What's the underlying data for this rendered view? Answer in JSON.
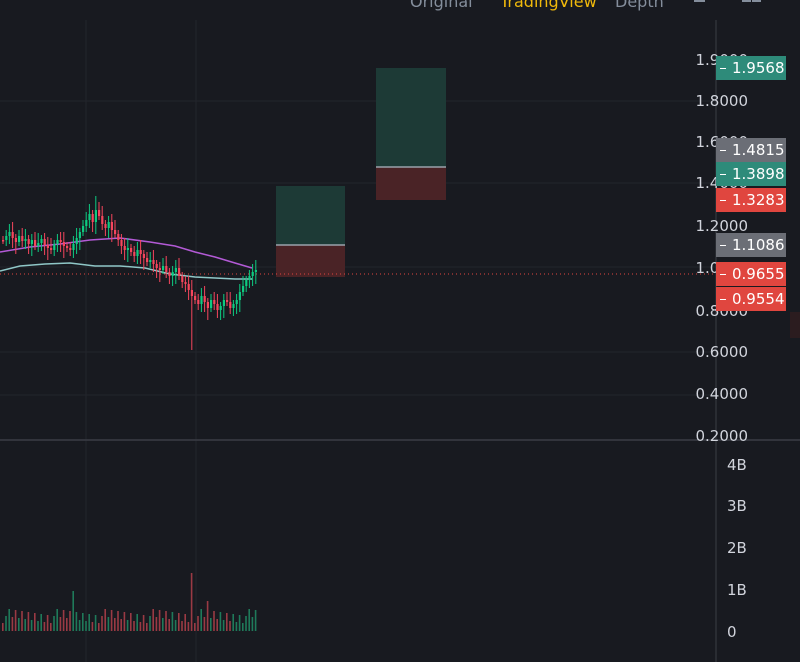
{
  "toolbar": {
    "tabs": [
      {
        "label": "Original",
        "active": false
      },
      {
        "label": "TradingView",
        "active": true
      },
      {
        "label": "Depth",
        "active": false
      }
    ],
    "icons": [
      "expand-icon",
      "layout-icon"
    ]
  },
  "price_axis": {
    "labels": [
      "1.9000",
      "1.8000",
      "1.6000",
      "1.4000",
      "1.2000",
      "1.0000",
      "0.8000",
      "0.6000",
      "0.4000",
      "0.2000"
    ]
  },
  "price_tags": [
    {
      "name": "tp-high-tag",
      "value": "1.9568",
      "color": "#2e8b7a"
    },
    {
      "name": "stop-high-tag",
      "value": "1.4815",
      "color": "#6b6e76"
    },
    {
      "name": "entry-high-tag",
      "value": "1.3898",
      "color": "#2e8b7a"
    },
    {
      "name": "sl-high-tag",
      "value": "1.3283",
      "color": "#e0463f"
    },
    {
      "name": "entry-low-tag",
      "value": "1.1086",
      "color": "#6b6e76"
    },
    {
      "name": "last-price-tag",
      "value": "0.9655",
      "color": "#e0463f"
    },
    {
      "name": "sl-low-tag",
      "value": "0.9554",
      "color": "#e0463f"
    }
  ],
  "volume_axis": {
    "labels": [
      "4B",
      "3B",
      "2B",
      "1B",
      "0"
    ]
  },
  "colors": {
    "background": "#181a20",
    "up": "#0ecb81",
    "down": "#f6465d",
    "ma_purple": "#b35ad6",
    "ma_teal": "#8fc7c7",
    "accent": "#f0b90b"
  }
}
